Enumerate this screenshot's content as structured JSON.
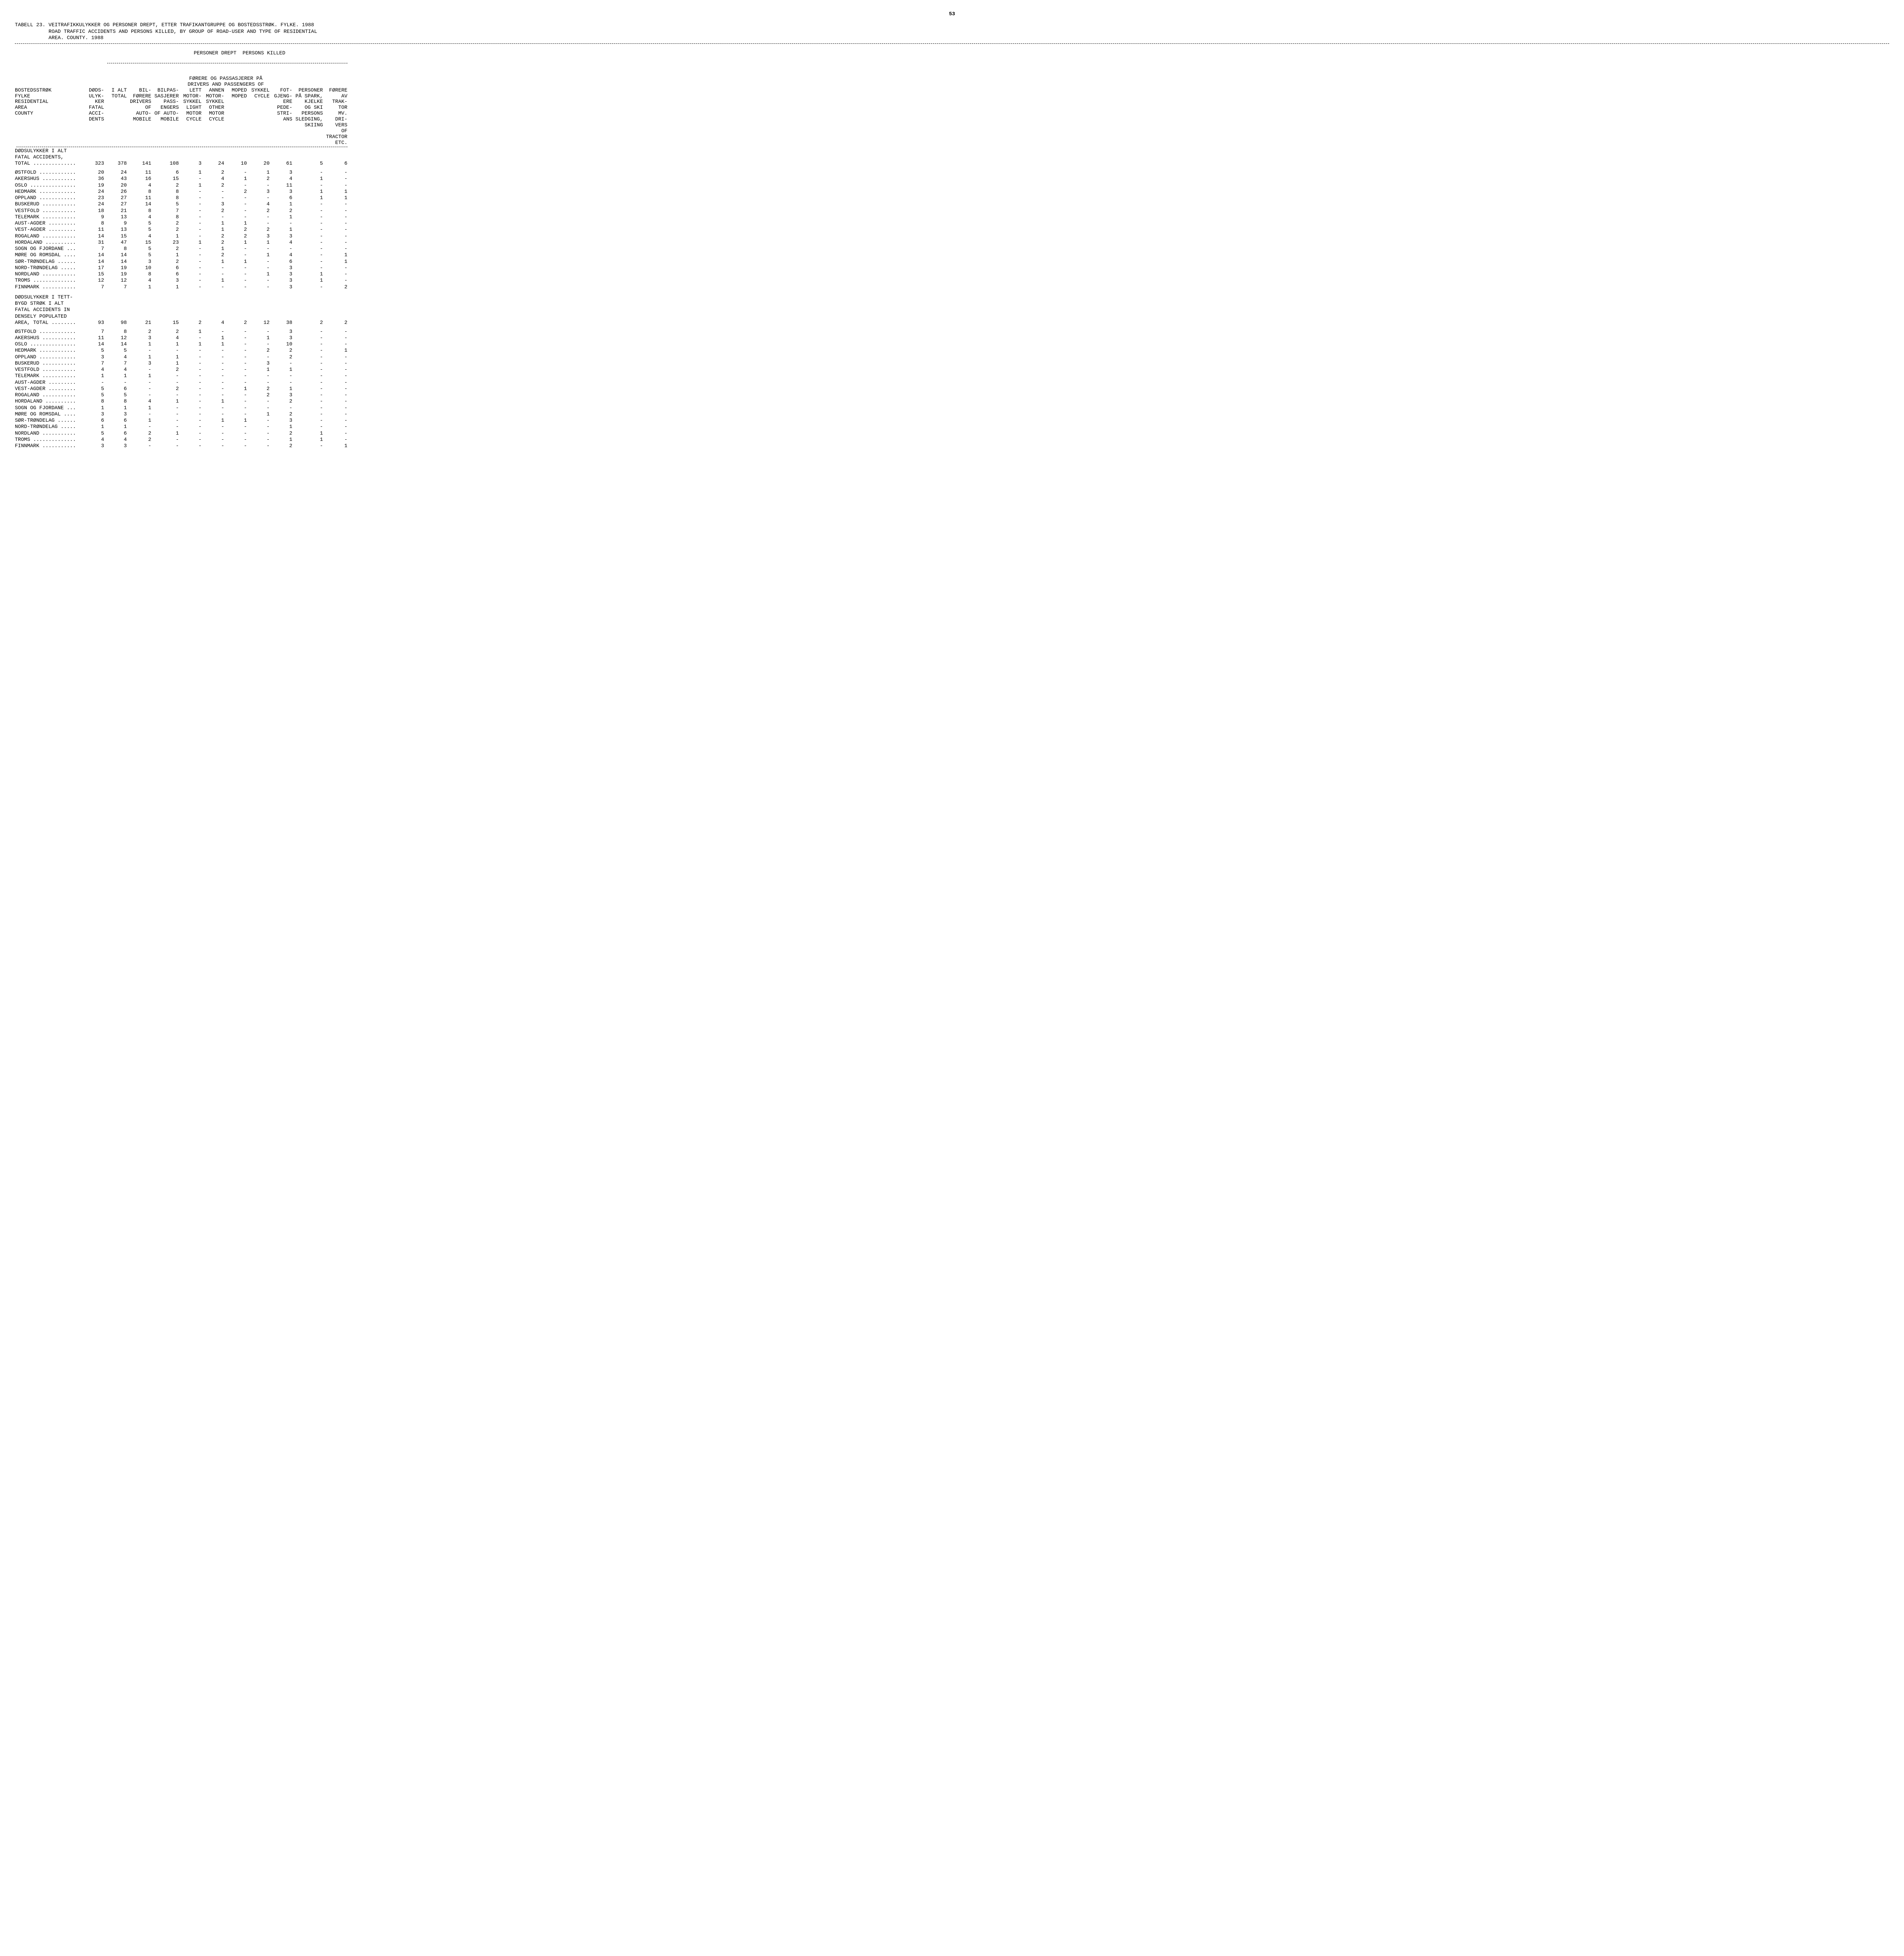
{
  "page_number": "53",
  "table_label": "TABELL 23.",
  "title_no": "VEITRAFIKKULYKKER OG PERSONER DREPT, ETTER TRAFIKANTGRUPPE OG BOSTEDSSTRØK.  FYLKE.  1988",
  "title_en": "ROAD TRAFFIC ACCIDENTS AND PERSONS KILLED, BY GROUP OF ROAD-USER AND TYPE OF RESIDENTIAL AREA.  COUNTY.  1988",
  "super_header": "PERSONER DREPT  PERSONS KILLED",
  "sub_header": "FØRERE OG PASSASJERER PÅ\nDRIVERS AND PASSENGERS OF",
  "columns": {
    "c0": "BOSTEDSSTRØK\nFYLKE\nRESIDENTIAL\nAREA\nCOUNTY",
    "c1": "DØDS-\nULYK-\nKER\nFATAL\nACCI-\nDENTS",
    "c2": "I ALT\nTOTAL",
    "c3": "BIL-\nFØRERE\nDRIVERS\nOF\nAUTO-\nMOBILE",
    "c4": "BILPAS-\nSASJERER\nPASS-\nENGERS\nOF AUTO-\nMOBILE",
    "c5": "LETT\nMOTOR-\nSYKKEL\nLIGHT\nMOTOR\nCYCLE",
    "c6": "ANNEN\nMOTOR-\nSYKKEL\nOTHER\nMOTOR\nCYCLE",
    "c7": "MOPED\nMOPED",
    "c8": "SYKKEL\nCYCLE",
    "c9": "FOT-\nGJENG-\nERE\nPEDE-\nSTRI-\nANS",
    "c10": "PERSONER\nPÅ SPARK,\nKJELKE\nOG SKI\nPERSONS\nSLEDGING,\nSKIING",
    "c11": "FØRERE\nAV\nTRAK-\nTOR\nMV.\nDRI-\nVERS\nOF\nTRACTOR\nETC."
  },
  "sections": [
    {
      "header": "DØDSULYKKER I ALT\nFATAL ACCIDENTS,\nTOTAL ..............",
      "header_values": [
        "323",
        "378",
        "141",
        "108",
        "3",
        "24",
        "10",
        "20",
        "61",
        "5",
        "6"
      ],
      "rows": [
        {
          "l": "ØSTFOLD ............",
          "v": [
            "20",
            "24",
            "11",
            "6",
            "1",
            "2",
            "-",
            "1",
            "3",
            "-",
            "-"
          ]
        },
        {
          "l": "AKERSHUS ...........",
          "v": [
            "36",
            "43",
            "16",
            "15",
            "-",
            "4",
            "1",
            "2",
            "4",
            "1",
            "-"
          ]
        },
        {
          "l": "OSLO ...............",
          "v": [
            "19",
            "20",
            "4",
            "2",
            "1",
            "2",
            "-",
            "-",
            "11",
            "-",
            "-"
          ]
        },
        {
          "l": "HEDMARK ............",
          "v": [
            "24",
            "26",
            "8",
            "8",
            "-",
            "-",
            "2",
            "3",
            "3",
            "1",
            "1"
          ]
        },
        {
          "l": "OPPLAND ............",
          "v": [
            "23",
            "27",
            "11",
            "8",
            "-",
            "-",
            "-",
            "-",
            "6",
            "1",
            "1"
          ]
        },
        {
          "l": "BUSKERUD ...........",
          "v": [
            "24",
            "27",
            "14",
            "5",
            "-",
            "3",
            "-",
            "4",
            "1",
            "-",
            "-"
          ]
        },
        {
          "l": "VESTFOLD ...........",
          "v": [
            "18",
            "21",
            "8",
            "7",
            "-",
            "2",
            "-",
            "2",
            "2",
            "-",
            "-"
          ]
        },
        {
          "l": "TELEMARK ...........",
          "v": [
            "9",
            "13",
            "4",
            "8",
            "-",
            "-",
            "-",
            "-",
            "1",
            "-",
            "-"
          ]
        },
        {
          "l": "AUST-AGDER .........",
          "v": [
            "8",
            "9",
            "5",
            "2",
            "-",
            "1",
            "1",
            "-",
            "-",
            "-",
            "-"
          ]
        },
        {
          "l": "VEST-AGDER .........",
          "v": [
            "11",
            "13",
            "5",
            "2",
            "-",
            "1",
            "2",
            "2",
            "1",
            "-",
            "-"
          ]
        },
        {
          "l": "ROGALAND ...........",
          "v": [
            "14",
            "15",
            "4",
            "1",
            "-",
            "2",
            "2",
            "3",
            "3",
            "-",
            "-"
          ]
        },
        {
          "l": "HORDALAND ..........",
          "v": [
            "31",
            "47",
            "15",
            "23",
            "1",
            "2",
            "1",
            "1",
            "4",
            "-",
            "-"
          ]
        },
        {
          "l": "SOGN OG FJORDANE ...",
          "v": [
            "7",
            "8",
            "5",
            "2",
            "-",
            "1",
            "-",
            "-",
            "-",
            "-",
            "-"
          ]
        },
        {
          "l": "MØRE OG ROMSDAL ....",
          "v": [
            "14",
            "14",
            "5",
            "1",
            "-",
            "2",
            "-",
            "1",
            "4",
            "-",
            "1"
          ]
        },
        {
          "l": "SØR-TRØNDELAG ......",
          "v": [
            "14",
            "14",
            "3",
            "2",
            "-",
            "1",
            "1",
            "-",
            "6",
            "-",
            "1"
          ]
        },
        {
          "l": "NORD-TRØNDELAG .....",
          "v": [
            "17",
            "19",
            "10",
            "6",
            "-",
            "-",
            "-",
            "-",
            "3",
            "-",
            "-"
          ]
        },
        {
          "l": "NORDLAND ...........",
          "v": [
            "15",
            "19",
            "8",
            "6",
            "-",
            "-",
            "-",
            "1",
            "3",
            "1",
            "-"
          ]
        },
        {
          "l": "TROMS ..............",
          "v": [
            "12",
            "12",
            "4",
            "3",
            "-",
            "1",
            "-",
            "-",
            "3",
            "1",
            "-"
          ]
        },
        {
          "l": "FINNMARK ...........",
          "v": [
            "7",
            "7",
            "1",
            "1",
            "-",
            "-",
            "-",
            "-",
            "3",
            "-",
            "2"
          ]
        }
      ]
    },
    {
      "header": "DØDSULYKKER I TETT-\nBYGD STRØK I ALT\nFATAL ACCIDENTS IN\nDENSELY POPULATED\nAREA, TOTAL ........",
      "header_values": [
        "93",
        "98",
        "21",
        "15",
        "2",
        "4",
        "2",
        "12",
        "38",
        "2",
        "2"
      ],
      "rows": [
        {
          "l": "ØSTFOLD ............",
          "v": [
            "7",
            "8",
            "2",
            "2",
            "1",
            "-",
            "-",
            "-",
            "3",
            "-",
            "-"
          ]
        },
        {
          "l": "AKERSHUS ...........",
          "v": [
            "11",
            "12",
            "3",
            "4",
            "-",
            "1",
            "-",
            "1",
            "3",
            "-",
            "-"
          ]
        },
        {
          "l": "OSLO ...............",
          "v": [
            "14",
            "14",
            "1",
            "1",
            "1",
            "1",
            "-",
            "-",
            "10",
            "-",
            "-"
          ]
        },
        {
          "l": "HEDMARK ............",
          "v": [
            "5",
            "5",
            "-",
            "-",
            "-",
            "-",
            "-",
            "2",
            "2",
            "-",
            "1"
          ]
        },
        {
          "l": "OPPLAND ............",
          "v": [
            "3",
            "4",
            "1",
            "1",
            "-",
            "-",
            "-",
            "-",
            "2",
            "-",
            "-"
          ]
        },
        {
          "l": "BUSKERUD ...........",
          "v": [
            "7",
            "7",
            "3",
            "1",
            "-",
            "-",
            "-",
            "3",
            "-",
            "-",
            "-"
          ]
        },
        {
          "l": "VESTFOLD ...........",
          "v": [
            "4",
            "4",
            "-",
            "2",
            "-",
            "-",
            "-",
            "1",
            "1",
            "-",
            "-"
          ]
        },
        {
          "l": "TELEMARK ...........",
          "v": [
            "1",
            "1",
            "1",
            "-",
            "-",
            "-",
            "-",
            "-",
            "-",
            "-",
            "-"
          ]
        },
        {
          "l": "AUST-AGDER .........",
          "v": [
            "-",
            "-",
            "-",
            "-",
            "-",
            "-",
            "-",
            "-",
            "-",
            "-",
            "-"
          ]
        },
        {
          "l": "VEST-AGDER .........",
          "v": [
            "5",
            "6",
            "-",
            "2",
            "-",
            "-",
            "1",
            "2",
            "1",
            "-",
            "-"
          ]
        },
        {
          "l": "ROGALAND ...........",
          "v": [
            "5",
            "5",
            "-",
            "-",
            "-",
            "-",
            "-",
            "2",
            "3",
            "-",
            "-"
          ]
        },
        {
          "l": "HORDALAND ..........",
          "v": [
            "8",
            "8",
            "4",
            "1",
            "-",
            "1",
            "-",
            "-",
            "2",
            "-",
            "-"
          ]
        },
        {
          "l": "SOGN OG FJORDANE ...",
          "v": [
            "1",
            "1",
            "1",
            "-",
            "-",
            "-",
            "-",
            "-",
            "-",
            "-",
            "-"
          ]
        },
        {
          "l": "MØRE OG ROMSDAL ....",
          "v": [
            "3",
            "3",
            "-",
            "-",
            "-",
            "-",
            "-",
            "1",
            "2",
            "-",
            "-"
          ]
        },
        {
          "l": "SØR-TRØNDELAG ......",
          "v": [
            "6",
            "6",
            "1",
            "-",
            "-",
            "1",
            "1",
            "-",
            "3",
            "-",
            "-"
          ]
        },
        {
          "l": "NORD-TRØNDELAG .....",
          "v": [
            "1",
            "1",
            "-",
            "-",
            "-",
            "-",
            "-",
            "-",
            "1",
            "-",
            "-"
          ]
        },
        {
          "l": "NORDLAND ...........",
          "v": [
            "5",
            "6",
            "2",
            "1",
            "-",
            "-",
            "-",
            "-",
            "2",
            "1",
            "-"
          ]
        },
        {
          "l": "TROMS ..............",
          "v": [
            "4",
            "4",
            "2",
            "-",
            "-",
            "-",
            "-",
            "-",
            "1",
            "1",
            "-"
          ]
        },
        {
          "l": "FINNMARK ...........",
          "v": [
            "3",
            "3",
            "-",
            "-",
            "-",
            "-",
            "-",
            "-",
            "2",
            "-",
            "1"
          ]
        }
      ]
    }
  ]
}
